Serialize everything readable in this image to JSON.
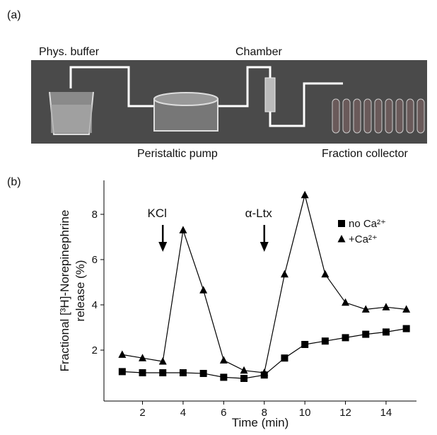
{
  "diagram": {
    "panel_label": "(a)",
    "labels": [
      "Phys. buffer",
      "Chamber",
      "Peristaltic pump",
      "Fraction collector"
    ]
  },
  "chart_data": {
    "type": "line",
    "panel_label": "(b)",
    "x_label": "Time (min)",
    "y_label": [
      "Fractional [³H]-Norepinephrine",
      "release (%)"
    ],
    "x": [
      1,
      2,
      3,
      4,
      5,
      6,
      7,
      8,
      9,
      10,
      11,
      12,
      13,
      14,
      15
    ],
    "series": [
      {
        "name": "no Ca²⁺",
        "color": "#000000",
        "marker": "square",
        "values": [
          1.05,
          1.0,
          1.0,
          1.0,
          0.97,
          0.8,
          0.75,
          0.9,
          1.65,
          2.25,
          2.4,
          2.55,
          2.7,
          2.8,
          2.95
        ]
      },
      {
        "name": "+Ca²⁺",
        "color": "#000000",
        "marker": "triangle",
        "values": [
          1.8,
          1.65,
          1.5,
          7.3,
          4.65,
          1.55,
          1.1,
          1.0,
          5.35,
          8.85,
          5.35,
          4.1,
          3.8,
          3.9,
          3.8
        ]
      }
    ],
    "annotations": [
      {
        "text": "KCl",
        "x": 3
      },
      {
        "text": "α-Ltx",
        "x": 8
      }
    ],
    "xlim": [
      0.1,
      15.5
    ],
    "ylim": [
      -0.25,
      9.5
    ],
    "xticks": [
      2,
      4,
      6,
      8,
      10,
      12,
      14
    ],
    "yticks": [
      2,
      4,
      6,
      8
    ],
    "legend": "upper right"
  }
}
